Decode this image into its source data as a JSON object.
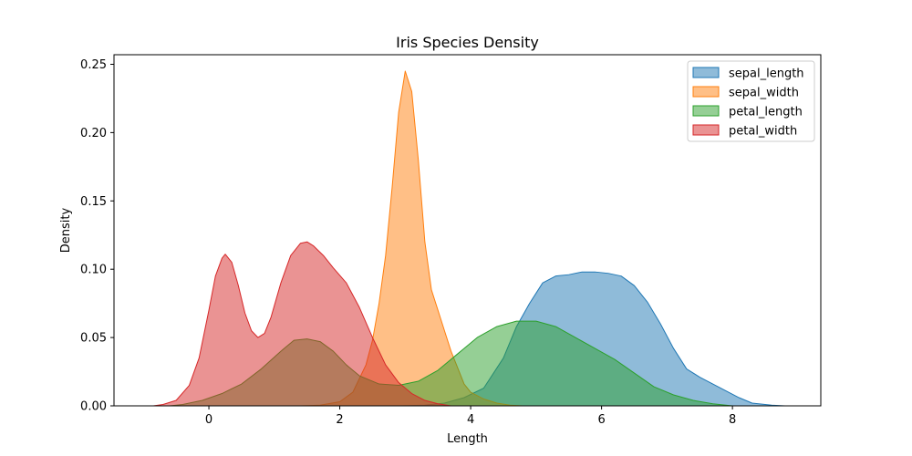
{
  "chart_data": {
    "type": "area",
    "title": "Iris Species Density",
    "xlabel": "Length",
    "ylabel": "Density",
    "xlim": [
      -1.45,
      9.35
    ],
    "ylim": [
      0,
      0.257
    ],
    "xticks": [
      0,
      2,
      4,
      6,
      8
    ],
    "xtick_labels": [
      "0",
      "2",
      "4",
      "6",
      "8"
    ],
    "yticks": [
      0,
      0.05,
      0.1,
      0.15,
      0.2,
      0.25
    ],
    "ytick_labels": [
      "0.00",
      "0.05",
      "0.10",
      "0.15",
      "0.20",
      "0.25"
    ],
    "legend_position": "top-right",
    "grid": false,
    "series": [
      {
        "name": "sepal_length",
        "color": "#1f77b4",
        "points": [
          [
            2.9,
            0
          ],
          [
            3.3,
            0.0005
          ],
          [
            3.6,
            0.002
          ],
          [
            3.9,
            0.006
          ],
          [
            4.2,
            0.013
          ],
          [
            4.5,
            0.035
          ],
          [
            4.7,
            0.058
          ],
          [
            4.9,
            0.075
          ],
          [
            5.1,
            0.09
          ],
          [
            5.3,
            0.095
          ],
          [
            5.5,
            0.096
          ],
          [
            5.7,
            0.098
          ],
          [
            5.9,
            0.098
          ],
          [
            6.1,
            0.097
          ],
          [
            6.3,
            0.095
          ],
          [
            6.5,
            0.088
          ],
          [
            6.7,
            0.076
          ],
          [
            6.9,
            0.06
          ],
          [
            7.1,
            0.042
          ],
          [
            7.3,
            0.027
          ],
          [
            7.5,
            0.021
          ],
          [
            7.7,
            0.016
          ],
          [
            7.9,
            0.011
          ],
          [
            8.1,
            0.006
          ],
          [
            8.3,
            0.002
          ],
          [
            8.6,
            0.0005
          ],
          [
            8.8,
            0
          ]
        ]
      },
      {
        "name": "sepal_width",
        "color": "#ff7f0e",
        "points": [
          [
            1.4,
            0
          ],
          [
            1.7,
            0.0005
          ],
          [
            2.0,
            0.003
          ],
          [
            2.2,
            0.01
          ],
          [
            2.4,
            0.03
          ],
          [
            2.5,
            0.048
          ],
          [
            2.6,
            0.075
          ],
          [
            2.7,
            0.11
          ],
          [
            2.8,
            0.16
          ],
          [
            2.9,
            0.215
          ],
          [
            3.0,
            0.245
          ],
          [
            3.1,
            0.23
          ],
          [
            3.2,
            0.18
          ],
          [
            3.3,
            0.12
          ],
          [
            3.4,
            0.085
          ],
          [
            3.5,
            0.07
          ],
          [
            3.6,
            0.055
          ],
          [
            3.7,
            0.04
          ],
          [
            3.8,
            0.028
          ],
          [
            3.9,
            0.016
          ],
          [
            4.0,
            0.01
          ],
          [
            4.2,
            0.005
          ],
          [
            4.4,
            0.002
          ],
          [
            4.6,
            0.0005
          ],
          [
            4.8,
            0
          ]
        ]
      },
      {
        "name": "petal_length",
        "color": "#2ca02c",
        "points": [
          [
            -0.6,
            0
          ],
          [
            -0.4,
            0.001
          ],
          [
            -0.1,
            0.004
          ],
          [
            0.2,
            0.009
          ],
          [
            0.5,
            0.016
          ],
          [
            0.8,
            0.027
          ],
          [
            1.1,
            0.04
          ],
          [
            1.3,
            0.048
          ],
          [
            1.5,
            0.049
          ],
          [
            1.7,
            0.047
          ],
          [
            1.9,
            0.04
          ],
          [
            2.1,
            0.03
          ],
          [
            2.3,
            0.022
          ],
          [
            2.6,
            0.016
          ],
          [
            2.9,
            0.015
          ],
          [
            3.2,
            0.018
          ],
          [
            3.5,
            0.026
          ],
          [
            3.8,
            0.038
          ],
          [
            4.1,
            0.05
          ],
          [
            4.4,
            0.058
          ],
          [
            4.7,
            0.062
          ],
          [
            5.0,
            0.062
          ],
          [
            5.3,
            0.058
          ],
          [
            5.6,
            0.05
          ],
          [
            5.9,
            0.042
          ],
          [
            6.2,
            0.034
          ],
          [
            6.5,
            0.024
          ],
          [
            6.8,
            0.014
          ],
          [
            7.1,
            0.008
          ],
          [
            7.4,
            0.004
          ],
          [
            7.7,
            0.0015
          ],
          [
            8.0,
            0
          ]
        ]
      },
      {
        "name": "petal_width",
        "color": "#d62728",
        "points": [
          [
            -0.85,
            0
          ],
          [
            -0.7,
            0.001
          ],
          [
            -0.5,
            0.004
          ],
          [
            -0.3,
            0.015
          ],
          [
            -0.15,
            0.035
          ],
          [
            0.0,
            0.07
          ],
          [
            0.1,
            0.095
          ],
          [
            0.2,
            0.108
          ],
          [
            0.25,
            0.111
          ],
          [
            0.35,
            0.105
          ],
          [
            0.45,
            0.088
          ],
          [
            0.55,
            0.068
          ],
          [
            0.65,
            0.055
          ],
          [
            0.75,
            0.05
          ],
          [
            0.85,
            0.053
          ],
          [
            0.95,
            0.065
          ],
          [
            1.1,
            0.09
          ],
          [
            1.25,
            0.11
          ],
          [
            1.4,
            0.119
          ],
          [
            1.5,
            0.12
          ],
          [
            1.6,
            0.117
          ],
          [
            1.75,
            0.11
          ],
          [
            1.9,
            0.101
          ],
          [
            2.1,
            0.09
          ],
          [
            2.3,
            0.072
          ],
          [
            2.5,
            0.05
          ],
          [
            2.7,
            0.03
          ],
          [
            2.9,
            0.017
          ],
          [
            3.1,
            0.009
          ],
          [
            3.3,
            0.004
          ],
          [
            3.5,
            0.0015
          ],
          [
            3.7,
            0
          ]
        ]
      }
    ]
  }
}
